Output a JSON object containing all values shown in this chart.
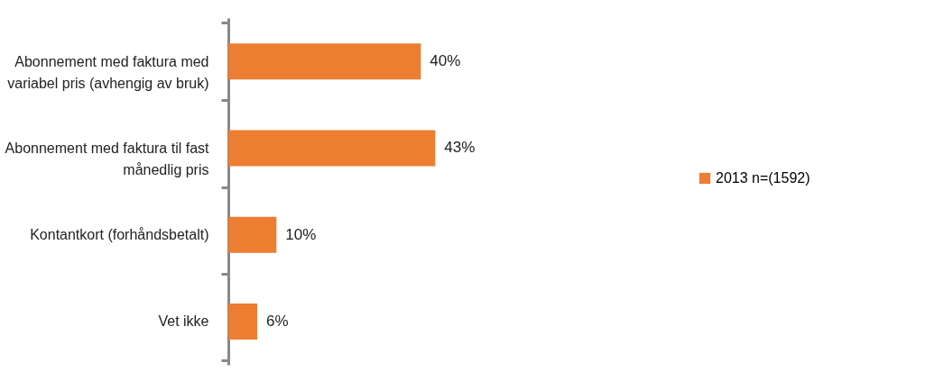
{
  "chart_data": {
    "type": "bar",
    "orientation": "horizontal",
    "categories": [
      "Abonnement med faktura med variabel pris (avhengig av bruk)",
      "Abonnement med faktura til fast månedlig pris",
      "Kontantkort (forhåndsbetalt)",
      "Vet ikke"
    ],
    "series": [
      {
        "name": "2013 n=(1592)",
        "color": "#ed7d31",
        "values": [
          40,
          43,
          10,
          6
        ],
        "value_labels": [
          "40%",
          "43%",
          "10%",
          "6%"
        ]
      }
    ],
    "legend": "right",
    "grid": false
  }
}
